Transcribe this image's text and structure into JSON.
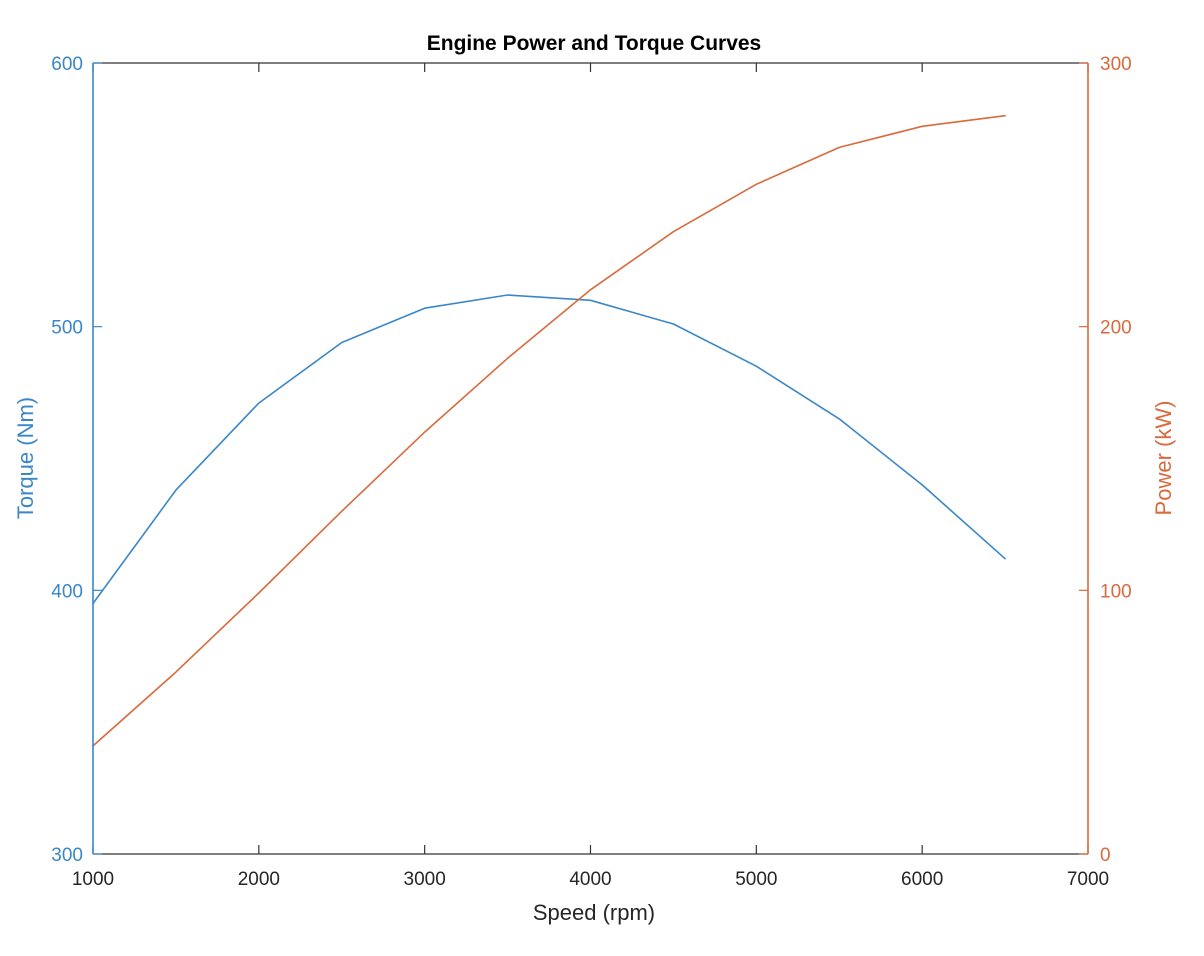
{
  "chart_data": {
    "type": "line",
    "title": "Engine Power and Torque Curves",
    "xlabel": "Speed (rpm)",
    "ylabel_left": "Torque (Nm)",
    "ylabel_right": "Power (kW)",
    "x": [
      1000,
      1500,
      2000,
      2500,
      3000,
      3500,
      4000,
      4500,
      5000,
      5500,
      6000,
      6500
    ],
    "xlim": [
      1000,
      7000
    ],
    "xticks": [
      1000,
      2000,
      3000,
      4000,
      5000,
      6000,
      7000
    ],
    "ylim_left": [
      300,
      600
    ],
    "yticks_left": [
      300,
      400,
      500,
      600
    ],
    "ylim_right": [
      0,
      300
    ],
    "yticks_right": [
      0,
      100,
      200,
      300
    ],
    "grid": false,
    "legend": "none",
    "series": [
      {
        "axis": "left",
        "color": "#3a87c8",
        "values": [
          395,
          438,
          471,
          494,
          507,
          512,
          510,
          501,
          485,
          465,
          440,
          412
        ]
      },
      {
        "axis": "right",
        "color": "#d96a3c",
        "values": [
          41,
          69,
          99,
          130,
          160,
          188,
          214,
          236,
          254,
          268,
          276,
          280
        ]
      }
    ],
    "colors": {
      "left_axis": "#3a87c8",
      "right_axis": "#d96a3c",
      "frame": "#333333",
      "text": "#262626"
    }
  }
}
